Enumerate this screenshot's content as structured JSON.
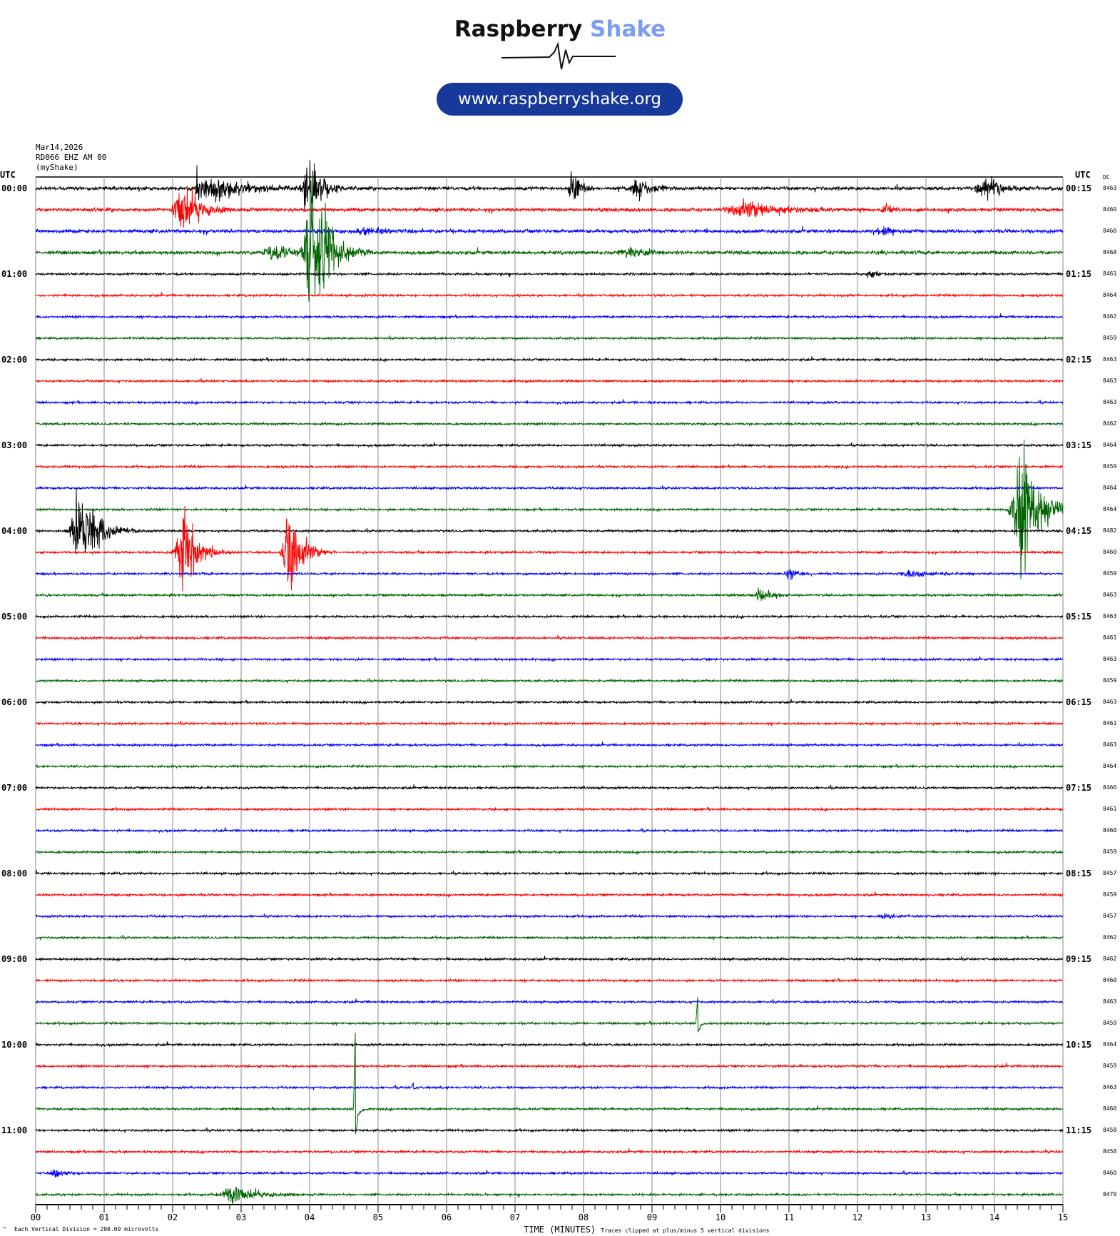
{
  "header": {
    "brand_part1": "Raspberry",
    "brand_part2": "Shake",
    "url": "www.raspberryshake.org",
    "brand_color": "#7b9cf5",
    "pill_color": "#17399a"
  },
  "meta": {
    "date": "Mar14,2026",
    "station": "RD066 EHZ AM 00",
    "network": "(myShake)"
  },
  "axis": {
    "left_title": "UTC",
    "right_title": "UTC",
    "dc_title": "DC",
    "left_labels": [
      "00:00",
      "01:00",
      "02:00",
      "03:00",
      "04:00",
      "05:00",
      "06:00",
      "07:00",
      "08:00",
      "09:00",
      "10:00",
      "11:00"
    ],
    "right_labels": [
      "00:15",
      "01:15",
      "02:15",
      "03:15",
      "04:15",
      "05:15",
      "06:15",
      "07:15",
      "08:15",
      "09:15",
      "10:15",
      "11:15"
    ],
    "x_ticks": [
      "00",
      "01",
      "02",
      "03",
      "04",
      "05",
      "06",
      "07",
      "08",
      "09",
      "10",
      "11",
      "12",
      "13",
      "14",
      "15"
    ],
    "xlabel": "TIME (MINUTES)"
  },
  "footer": {
    "corner": "^",
    "scale_note": "Each Vertical Division =  200.00 microvolts",
    "clip_note": "Traces clipped at plus/minus 5 vertical divisions"
  },
  "chart_data": {
    "type": "line",
    "subtype": "helicorder",
    "minutes_per_line": 15,
    "xlim": [
      0,
      15
    ],
    "grid": true,
    "trace_colors": [
      "#000000",
      "#ff0000",
      "#0000ff",
      "#006400"
    ],
    "dc_values": [
      8463,
      8460,
      8460,
      8468,
      8461,
      8464,
      8462,
      8459,
      8463,
      8463,
      8463,
      8462,
      8464,
      8459,
      8464,
      8464,
      8482,
      8460,
      8459,
      8463,
      8463,
      8461,
      8463,
      8459,
      8463,
      8461,
      8463,
      8464,
      8466,
      8461,
      8460,
      8459,
      8457,
      8459,
      8457,
      8462,
      8462,
      8460,
      8463,
      8459,
      8464,
      8459,
      8463,
      8460,
      8458,
      8458,
      8460,
      8470
    ],
    "events": [
      {
        "line": 0,
        "minute": 2.6,
        "duration": 0.9,
        "amplitude": 0.7
      },
      {
        "line": 0,
        "minute": 2.35,
        "duration": 0.05,
        "amplitude": 1.5
      },
      {
        "line": 0,
        "minute": 4.0,
        "duration": 0.3,
        "amplitude": 2.0
      },
      {
        "line": 0,
        "minute": 7.85,
        "duration": 0.2,
        "amplitude": 1.0
      },
      {
        "line": 0,
        "minute": 8.8,
        "duration": 0.4,
        "amplitude": 0.6
      },
      {
        "line": 0,
        "minute": 13.9,
        "duration": 0.5,
        "amplitude": 0.6
      },
      {
        "line": 1,
        "minute": 2.15,
        "duration": 0.4,
        "amplitude": 1.5
      },
      {
        "line": 1,
        "minute": 10.4,
        "duration": 1.0,
        "amplitude": 0.5
      },
      {
        "line": 1,
        "minute": 12.4,
        "duration": 0.2,
        "amplitude": 0.3
      },
      {
        "line": 2,
        "minute": 4.8,
        "duration": 0.6,
        "amplitude": 0.25
      },
      {
        "line": 2,
        "minute": 12.4,
        "duration": 0.4,
        "amplitude": 0.25
      },
      {
        "line": 3,
        "minute": 3.5,
        "duration": 0.7,
        "amplitude": 0.5
      },
      {
        "line": 3,
        "minute": 4.05,
        "duration": 0.35,
        "amplitude": 5.0
      },
      {
        "line": 3,
        "minute": 8.7,
        "duration": 0.6,
        "amplitude": 0.3
      },
      {
        "line": 4,
        "minute": 12.2,
        "duration": 0.2,
        "amplitude": 0.3
      },
      {
        "line": 15,
        "minute": 14.4,
        "duration": 0.4,
        "amplitude": 4.0
      },
      {
        "line": 16,
        "minute": 0.65,
        "duration": 0.4,
        "amplitude": 2.5
      },
      {
        "line": 17,
        "minute": 2.15,
        "duration": 0.3,
        "amplitude": 2.7
      },
      {
        "line": 17,
        "minute": 3.7,
        "duration": 0.3,
        "amplitude": 2.5
      },
      {
        "line": 18,
        "minute": 11.0,
        "duration": 0.2,
        "amplitude": 0.4
      },
      {
        "line": 18,
        "minute": 12.8,
        "duration": 0.6,
        "amplitude": 0.2
      },
      {
        "line": 19,
        "minute": 10.6,
        "duration": 0.3,
        "amplitude": 0.4
      },
      {
        "line": 34,
        "minute": 12.4,
        "duration": 0.3,
        "amplitude": 0.2
      },
      {
        "line": 46,
        "minute": 0.3,
        "duration": 0.3,
        "amplitude": 0.25
      },
      {
        "line": 47,
        "minute": 2.9,
        "duration": 0.6,
        "amplitude": 0.5
      }
    ],
    "pulses": [
      {
        "line": 39,
        "minute": 9.65,
        "amplitude": 1.4
      },
      {
        "line": 42,
        "minute": 5.5,
        "amplitude": 0.25
      },
      {
        "line": 43,
        "minute": 4.65,
        "amplitude": 4.0
      }
    ]
  }
}
